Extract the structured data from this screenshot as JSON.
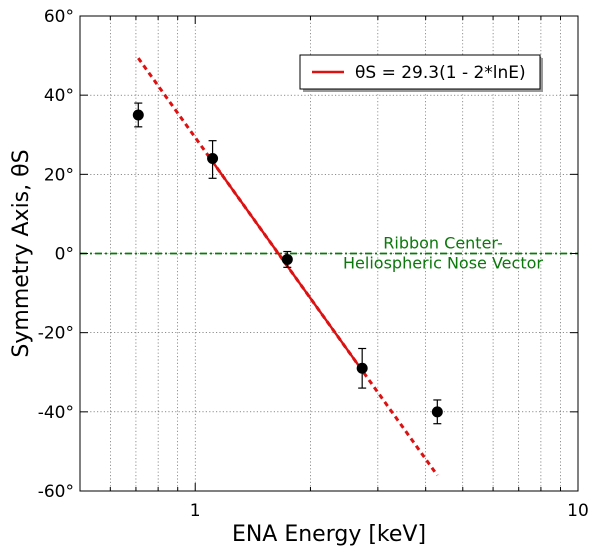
{
  "chart_data": {
    "type": "scatter",
    "title": "",
    "xlabel": "ENA Energy [keV]",
    "ylabel": "Symmetry Axis, θS",
    "x_scale": "log",
    "xlim": [
      0.5,
      10
    ],
    "ylim": [
      -60,
      60
    ],
    "grid": true,
    "x_ticks": [
      {
        "value": 1,
        "label": "1"
      },
      {
        "value": 10,
        "label": "10"
      }
    ],
    "y_ticks": [
      {
        "value": 60,
        "label": "60°"
      },
      {
        "value": 40,
        "label": "40°"
      },
      {
        "value": 20,
        "label": "20°"
      },
      {
        "value": 0,
        "label": "0°"
      },
      {
        "value": -20,
        "label": "-20°"
      },
      {
        "value": -40,
        "label": "-40°"
      },
      {
        "value": -60,
        "label": "-60°"
      }
    ],
    "points": [
      {
        "x": 0.71,
        "y": 35,
        "err_low": 3,
        "err_high": 3
      },
      {
        "x": 1.11,
        "y": 24,
        "err_low": 5,
        "err_high": 4.5
      },
      {
        "x": 1.74,
        "y": -1.5,
        "err_low": 2,
        "err_high": 2
      },
      {
        "x": 2.73,
        "y": -29,
        "err_low": 5,
        "err_high": 5
      },
      {
        "x": 4.29,
        "y": -40,
        "err_low": 3,
        "err_high": 3
      }
    ],
    "fit": {
      "legend": "θS = 29.3(1 - 2*lnE)",
      "color": "#dd1111",
      "solid_range": [
        1.11,
        2.73
      ],
      "dashed_range": [
        0.71,
        4.29
      ],
      "a": 29.3,
      "b": 2
    },
    "reference_line": {
      "y": 0,
      "color": "#0a780a",
      "label_line1": "Ribbon Center-",
      "label_line2": "Heliospheric Nose Vector"
    },
    "legend_position": "top-right"
  }
}
